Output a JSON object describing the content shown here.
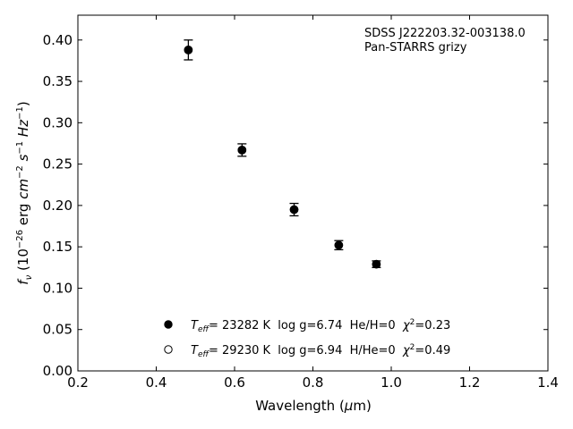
{
  "chart_data": {
    "type": "scatter",
    "annotation": [
      "SDSS J222203.32-003138.0",
      "Pan-STARRS grizy"
    ],
    "xlabel": "Wavelength (μm)",
    "ylabel": "fν (10⁻²⁶ erg cm⁻² s⁻¹ Hz⁻¹)",
    "xlim": [
      0.2,
      1.4
    ],
    "ylim": [
      0.0,
      0.43
    ],
    "xticks": [
      0.2,
      0.4,
      0.6,
      0.8,
      1.0,
      1.2,
      1.4
    ],
    "xtick_labels": [
      "0.2",
      "0.4",
      "0.6",
      "0.8",
      "1.0",
      "1.2",
      "1.4"
    ],
    "yticks": [
      0.0,
      0.05,
      0.1,
      0.15,
      0.2,
      0.25,
      0.3,
      0.35,
      0.4
    ],
    "ytick_labels": [
      "0.00",
      "0.05",
      "0.10",
      "0.15",
      "0.20",
      "0.25",
      "0.30",
      "0.35",
      "0.40"
    ],
    "grid": false,
    "legend_position": "lower-center",
    "observed": {
      "x": [
        0.482,
        0.619,
        0.752,
        0.866,
        0.962
      ],
      "y": [
        0.388,
        0.267,
        0.195,
        0.152,
        0.129
      ],
      "yerr": [
        0.012,
        0.0075,
        0.0075,
        0.0055,
        0.004
      ]
    },
    "series": [
      {
        "marker": "filled-circle",
        "label": {
          "teff": "= 23282 K  log g=6.74  He/H=0  ",
          "chi": "=0.23"
        },
        "x": [
          0.482,
          0.619,
          0.752,
          0.866,
          0.962
        ],
        "y": [
          0.388,
          0.267,
          0.195,
          0.152,
          0.129
        ]
      },
      {
        "marker": "open-circle",
        "label": {
          "teff": "= 29230 K  log g=6.94  H/He=0  ",
          "chi": "=0.49"
        },
        "x": [
          0.482,
          0.619,
          0.752,
          0.866,
          0.962
        ],
        "y": [
          0.388,
          0.267,
          0.195,
          0.152,
          0.129
        ]
      }
    ]
  }
}
